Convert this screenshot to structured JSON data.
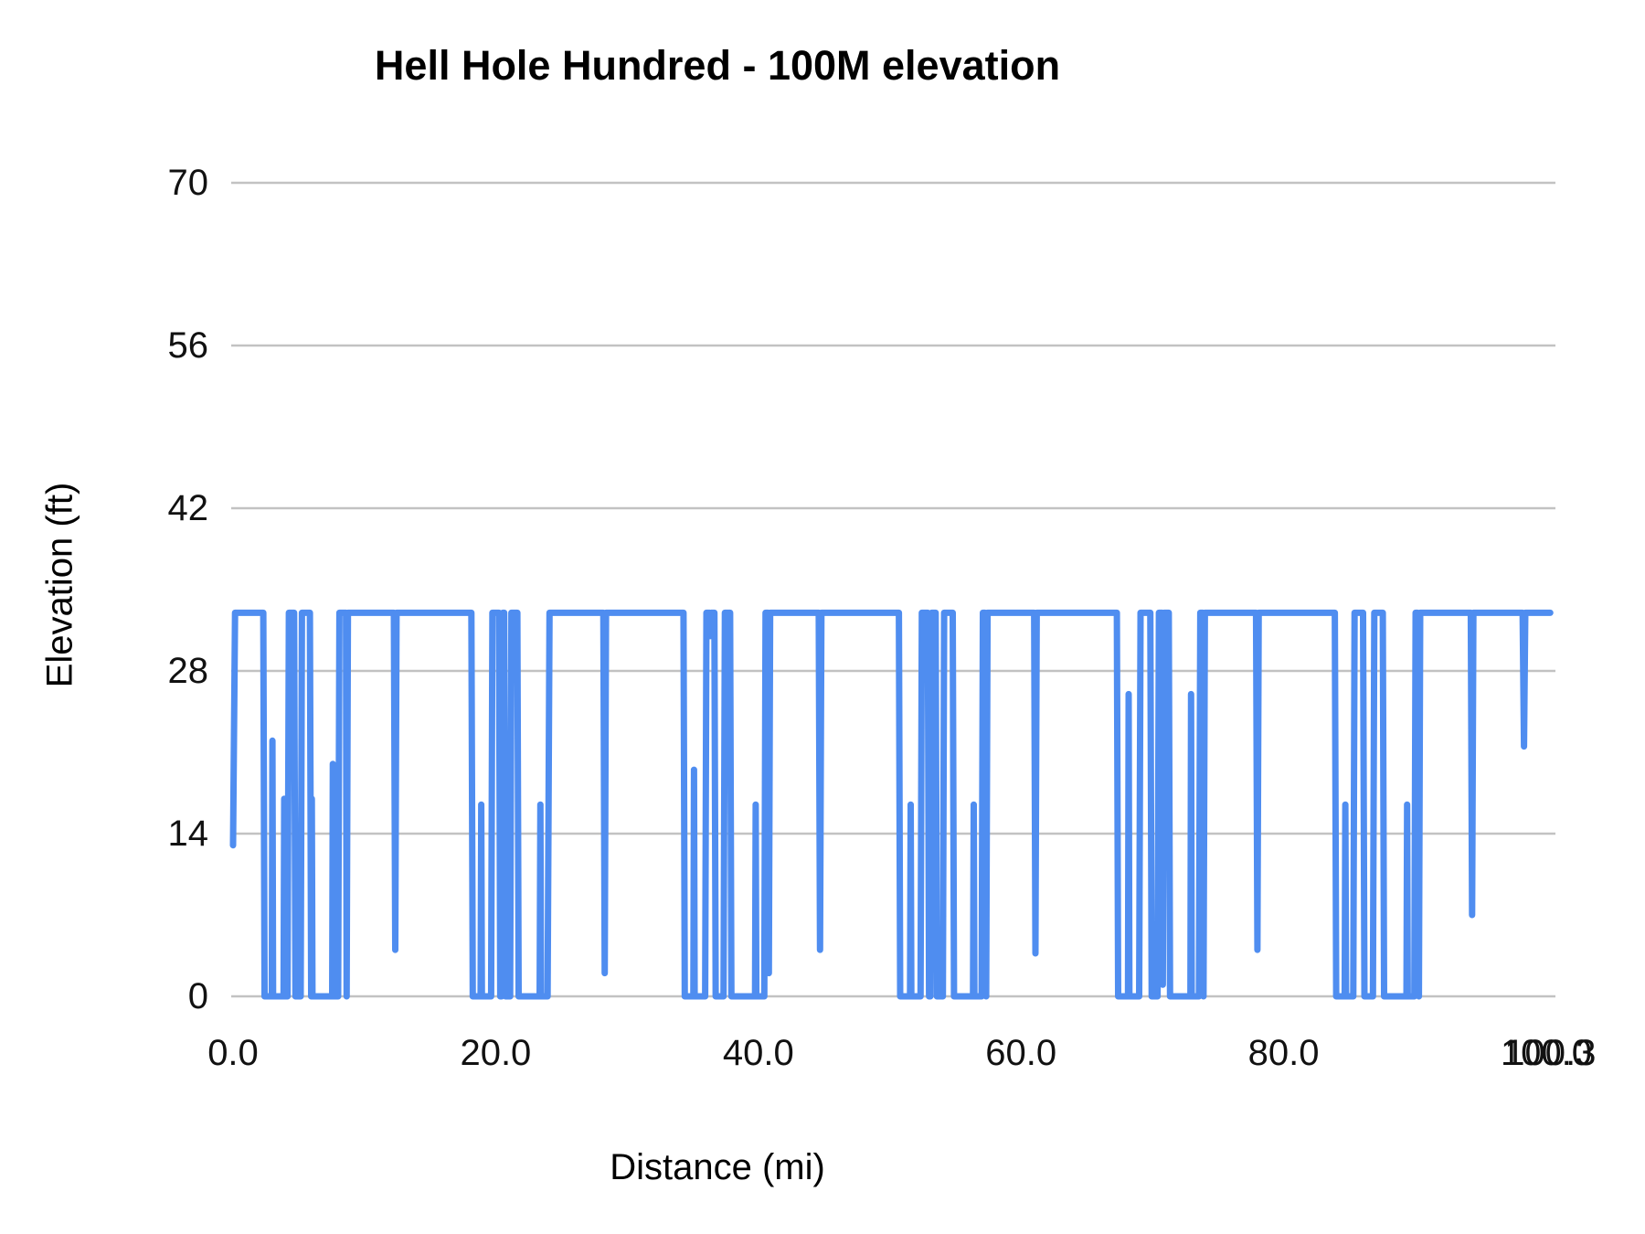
{
  "chart": {
    "title": "Hell Hole Hundred - 100M elevation",
    "xlabel": "Distance (mi)",
    "ylabel": "Elevation (ft)"
  },
  "chart_data": {
    "type": "line",
    "title": "Hell Hole Hundred - 100M elevation",
    "xlabel": "Distance (mi)",
    "ylabel": "Elevation (ft)",
    "legend": "none",
    "grid": "horizontal-only",
    "series_color": "#4f8df0",
    "gridline_color": "#c2c2c2",
    "text_color": "#111111",
    "xlim": [
      0,
      100.3
    ],
    "ylim": [
      0,
      70
    ],
    "y_ticks": [
      0,
      14,
      28,
      42,
      56,
      70
    ],
    "y_tick_labels": [
      "0",
      "14",
      "28",
      "42",
      "56",
      "70"
    ],
    "x_ticks": [
      {
        "value": 0,
        "label": "0.0"
      },
      {
        "value": 20,
        "label": "20.0"
      },
      {
        "value": 40,
        "label": "40.0"
      },
      {
        "value": 60,
        "label": "60.0"
      },
      {
        "value": 80,
        "label": "80.0"
      },
      {
        "value": 100,
        "label": "100.0"
      },
      {
        "value": 100.3,
        "label": "100.3"
      }
    ],
    "points": [
      [
        0,
        13
      ],
      [
        0.15,
        33
      ],
      [
        2.3,
        33
      ],
      [
        2.4,
        0
      ],
      [
        2.95,
        0
      ],
      [
        3.0,
        22
      ],
      [
        3.05,
        0
      ],
      [
        3.85,
        0
      ],
      [
        3.9,
        17
      ],
      [
        3.95,
        0
      ],
      [
        4.15,
        0
      ],
      [
        4.25,
        33
      ],
      [
        4.65,
        33
      ],
      [
        4.75,
        0
      ],
      [
        5.15,
        0
      ],
      [
        5.25,
        33
      ],
      [
        5.85,
        33
      ],
      [
        5.95,
        0
      ],
      [
        6.0,
        17
      ],
      [
        6.05,
        0
      ],
      [
        7.55,
        0
      ],
      [
        7.6,
        20
      ],
      [
        7.65,
        0
      ],
      [
        7.8,
        0
      ],
      [
        7.85,
        14
      ],
      [
        7.9,
        0
      ],
      [
        8.0,
        0
      ],
      [
        8.1,
        33
      ],
      [
        8.6,
        33
      ],
      [
        8.65,
        0
      ],
      [
        8.75,
        33
      ],
      [
        12.25,
        33
      ],
      [
        12.35,
        4
      ],
      [
        12.45,
        33
      ],
      [
        18.15,
        33
      ],
      [
        18.25,
        0
      ],
      [
        18.85,
        0
      ],
      [
        18.9,
        16.5
      ],
      [
        18.95,
        0
      ],
      [
        19.65,
        0
      ],
      [
        19.75,
        33
      ],
      [
        20.25,
        33
      ],
      [
        20.35,
        0
      ],
      [
        20.45,
        0
      ],
      [
        20.55,
        33
      ],
      [
        20.65,
        33
      ],
      [
        20.75,
        0
      ],
      [
        21.1,
        0
      ],
      [
        21.2,
        33
      ],
      [
        21.65,
        33
      ],
      [
        21.75,
        0
      ],
      [
        23.35,
        0
      ],
      [
        23.4,
        16.5
      ],
      [
        23.45,
        0
      ],
      [
        23.95,
        0
      ],
      [
        24.1,
        33
      ],
      [
        28.2,
        33
      ],
      [
        28.3,
        2
      ],
      [
        28.4,
        33
      ],
      [
        34.3,
        33
      ],
      [
        34.4,
        0
      ],
      [
        35.05,
        0
      ],
      [
        35.1,
        19.5
      ],
      [
        35.15,
        0
      ],
      [
        35.95,
        0
      ],
      [
        36.05,
        33
      ],
      [
        36.3,
        33
      ],
      [
        36.35,
        31
      ],
      [
        36.4,
        33
      ],
      [
        36.65,
        33
      ],
      [
        36.75,
        0
      ],
      [
        37.35,
        0
      ],
      [
        37.45,
        33
      ],
      [
        37.85,
        33
      ],
      [
        37.95,
        0
      ],
      [
        39.75,
        0
      ],
      [
        39.8,
        16.5
      ],
      [
        39.85,
        0
      ],
      [
        40.45,
        0
      ],
      [
        40.55,
        33
      ],
      [
        40.75,
        33
      ],
      [
        40.8,
        2
      ],
      [
        40.9,
        33
      ],
      [
        44.6,
        33
      ],
      [
        44.7,
        4
      ],
      [
        44.8,
        33
      ],
      [
        50.7,
        33
      ],
      [
        50.8,
        0
      ],
      [
        51.55,
        0
      ],
      [
        51.6,
        16.5
      ],
      [
        51.65,
        0
      ],
      [
        52.35,
        0
      ],
      [
        52.45,
        33
      ],
      [
        52.9,
        33
      ],
      [
        53.0,
        0
      ],
      [
        53.1,
        0
      ],
      [
        53.2,
        33
      ],
      [
        53.5,
        33
      ],
      [
        53.6,
        0
      ],
      [
        54.05,
        0
      ],
      [
        54.15,
        33
      ],
      [
        54.8,
        33
      ],
      [
        54.9,
        0
      ],
      [
        56.35,
        0
      ],
      [
        56.4,
        16.5
      ],
      [
        56.45,
        0
      ],
      [
        57.0,
        0
      ],
      [
        57.1,
        33
      ],
      [
        57.25,
        33
      ],
      [
        57.35,
        0
      ],
      [
        57.45,
        33
      ],
      [
        61.0,
        33
      ],
      [
        61.1,
        3.7
      ],
      [
        61.2,
        33
      ],
      [
        67.3,
        33
      ],
      [
        67.4,
        0
      ],
      [
        68.15,
        0
      ],
      [
        68.2,
        26
      ],
      [
        68.25,
        0
      ],
      [
        69.0,
        0
      ],
      [
        69.1,
        33
      ],
      [
        69.85,
        33
      ],
      [
        69.95,
        0
      ],
      [
        70.4,
        0
      ],
      [
        70.5,
        33
      ],
      [
        70.75,
        33
      ],
      [
        70.8,
        1
      ],
      [
        70.9,
        33
      ],
      [
        71.25,
        33
      ],
      [
        71.35,
        0
      ],
      [
        72.9,
        0
      ],
      [
        72.95,
        26
      ],
      [
        73.0,
        0
      ],
      [
        73.55,
        0
      ],
      [
        73.65,
        33
      ],
      [
        73.85,
        33
      ],
      [
        73.9,
        0
      ],
      [
        74.0,
        33
      ],
      [
        77.9,
        33
      ],
      [
        78.0,
        4
      ],
      [
        78.1,
        33
      ],
      [
        83.9,
        33
      ],
      [
        84.0,
        0
      ],
      [
        84.65,
        0
      ],
      [
        84.7,
        16.5
      ],
      [
        84.75,
        0
      ],
      [
        85.3,
        0
      ],
      [
        85.4,
        33
      ],
      [
        86.05,
        33
      ],
      [
        86.15,
        0
      ],
      [
        86.8,
        0
      ],
      [
        86.9,
        33
      ],
      [
        87.55,
        33
      ],
      [
        87.65,
        0
      ],
      [
        89.35,
        0
      ],
      [
        89.4,
        16.5
      ],
      [
        89.45,
        0
      ],
      [
        89.95,
        0
      ],
      [
        90.05,
        33
      ],
      [
        90.2,
        33
      ],
      [
        90.3,
        0
      ],
      [
        90.4,
        33
      ],
      [
        94.25,
        33
      ],
      [
        94.35,
        7
      ],
      [
        94.45,
        33
      ],
      [
        98.2,
        33
      ],
      [
        98.3,
        21.5
      ],
      [
        98.4,
        33
      ],
      [
        100.3,
        33
      ]
    ]
  }
}
